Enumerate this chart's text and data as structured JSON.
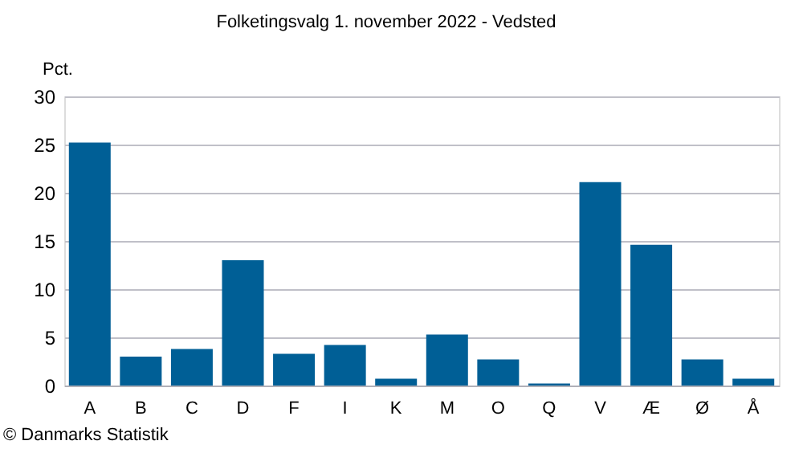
{
  "chart_data": {
    "type": "bar",
    "title": "Folketingsvalg 1. november 2022 - Vedsted",
    "ylabel": "Pct.",
    "categories": [
      "A",
      "B",
      "C",
      "D",
      "F",
      "I",
      "K",
      "M",
      "O",
      "Q",
      "V",
      "Æ",
      "Ø",
      "Å"
    ],
    "values": [
      25.2,
      3.0,
      3.8,
      13.0,
      3.3,
      4.2,
      0.7,
      5.3,
      2.7,
      0.2,
      21.1,
      14.6,
      2.7,
      0.7
    ],
    "color": "#005f96",
    "ylim": [
      0,
      30
    ],
    "yticks": [
      0,
      5,
      10,
      15,
      20,
      25,
      30
    ],
    "grid": "y",
    "annotations": [
      "© Danmarks Statistik"
    ]
  }
}
